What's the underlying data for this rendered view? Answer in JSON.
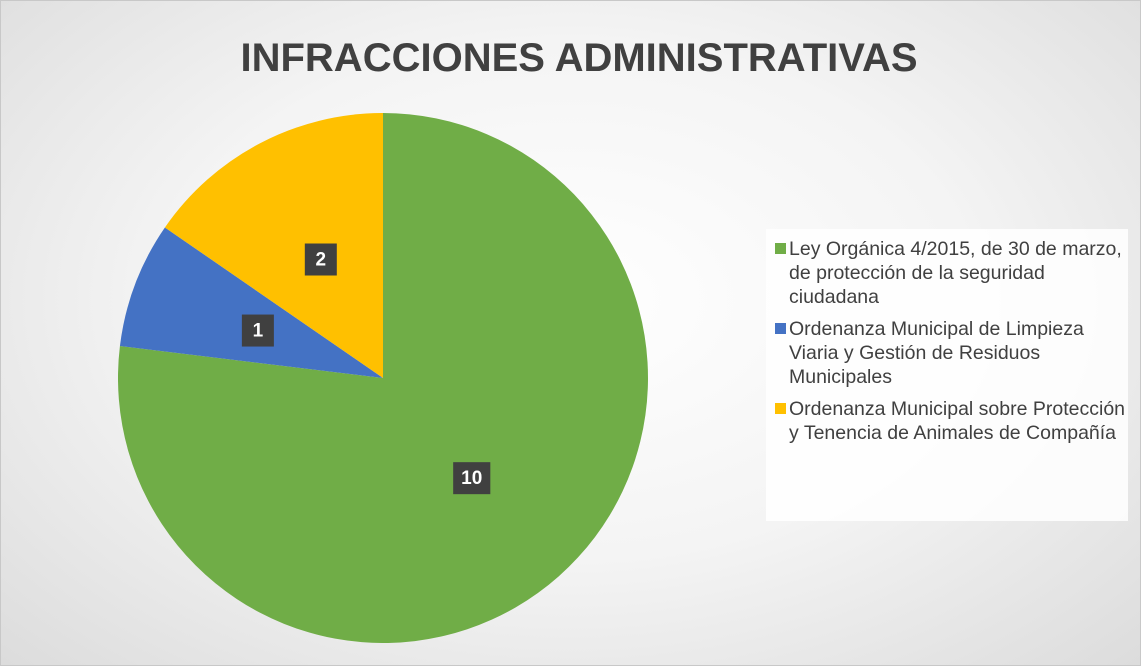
{
  "chart_data": {
    "type": "pie",
    "title": "INFRACCIONES ADMINISTRATIVAS",
    "categories": [
      "Ley Orgánica 4/2015, de 30 de marzo, de protección de la seguridad ciudadana",
      "Ordenanza Municipal de Limpieza Viaria y Gestión de Residuos Municipales",
      "Ordenanza Municipal sobre Protección y Tenencia de Animales de Compañía"
    ],
    "values": [
      10,
      1,
      2
    ],
    "colors": [
      "#70ad47",
      "#4472c4",
      "#ffc000"
    ],
    "legend": "right"
  }
}
